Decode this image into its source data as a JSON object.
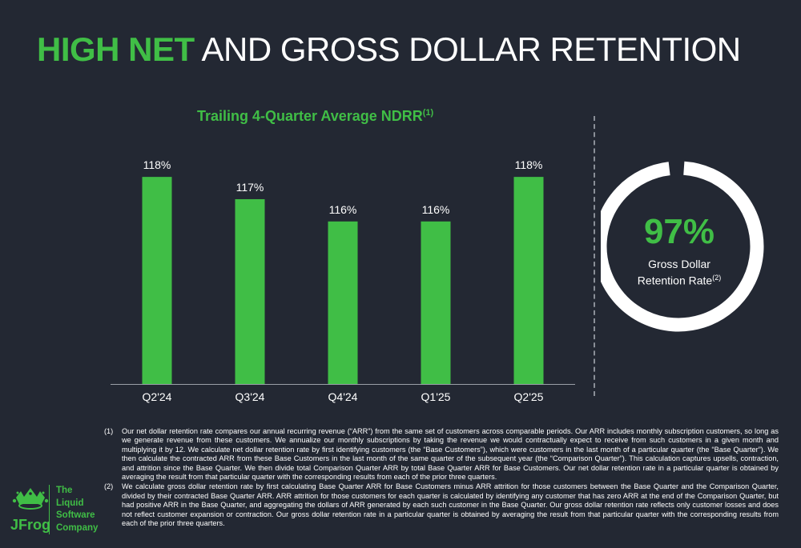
{
  "header": {
    "title_accent": "HIGH NET",
    "title_rest": "AND GROSS DOLLAR RETENTION"
  },
  "chart_data": {
    "type": "bar",
    "title": "Trailing 4-Quarter Average NDRR",
    "title_sup": "(1)",
    "categories": [
      "Q2'24",
      "Q3'24",
      "Q4'24",
      "Q1'25",
      "Q2'25"
    ],
    "values": [
      118,
      117,
      116,
      116,
      118
    ],
    "data_labels": [
      "118%",
      "117%",
      "116%",
      "116%",
      "118%"
    ],
    "unit": "%",
    "bar_color": "#40be46",
    "ylim": [
      108.7,
      118.4
    ],
    "grid": false,
    "xlabel": "",
    "ylabel": ""
  },
  "gross": {
    "value": "97%",
    "fraction": 0.97,
    "label_line1": "Gross Dollar",
    "label_line2": "Retention Rate",
    "label_sup": "(2)",
    "ring_color": "#ffffff",
    "value_color": "#40be46"
  },
  "footnotes": [
    {
      "num": "(1)",
      "text": "Our net dollar retention rate compares our annual recurring revenue (“ARR”) from the same set of customers across comparable periods. Our ARR includes monthly subscription customers, so long as we generate revenue from these customers. We annualize our monthly subscriptions by taking the revenue we would contractually expect to receive from such customers in a given month and multiplying it by 12. We calculate net dollar retention rate by first identifying customers (the “Base Customers”), which were customers in the last month of a particular quarter (the “Base Quarter”). We then calculate the contracted ARR from these Base Customers in the last month of the same quarter of the subsequent year (the “Comparison Quarter”). This calculation captures upsells, contraction, and attrition since the Base Quarter. We then divide total Comparison Quarter ARR by total Base Quarter ARR for Base Customers. Our net dollar retention rate in a particular quarter is obtained by averaging the result from that particular quarter with the corresponding results from each of the prior three quarters."
    },
    {
      "num": "(2)",
      "text": "We calculate gross dollar retention rate by first calculating Base Quarter ARR for Base Customers minus ARR attrition for those customers between the Base Quarter and the Comparison Quarter, divided by their contracted Base Quarter ARR. ARR attrition for those customers for each quarter is calculated by identifying any customer that has zero ARR at the end of the Comparison Quarter, but had positive ARR in the Base Quarter, and aggregating the dollars of ARR generated by each such customer in the Base Quarter. Our gross dollar retention rate reflects only customer losses and does not reflect customer expansion or contraction. Our gross dollar retention rate in a particular quarter is obtained by averaging the result from that particular quarter with the corresponding results from each of the prior three quarters."
    }
  ],
  "logo": {
    "wordmark": "JFrog",
    "tagline": [
      "The",
      "Liquid",
      "Software",
      "Company"
    ]
  }
}
